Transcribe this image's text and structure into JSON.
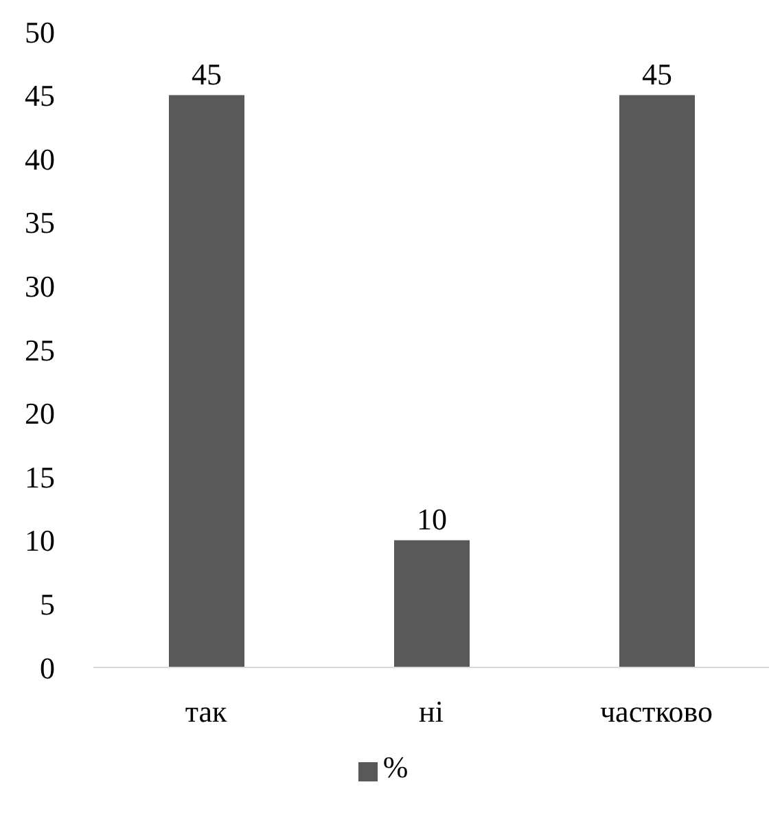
{
  "chart_data": {
    "type": "bar",
    "categories": [
      "так",
      "ні",
      "частково"
    ],
    "series": [
      {
        "name": "%",
        "color": "#595959",
        "values": [
          45,
          10,
          45
        ]
      }
    ],
    "ylim": [
      0,
      50
    ],
    "yticks": [
      0,
      5,
      10,
      15,
      20,
      25,
      30,
      35,
      40,
      45,
      50
    ],
    "data_labels": true,
    "legend": "bottom"
  }
}
